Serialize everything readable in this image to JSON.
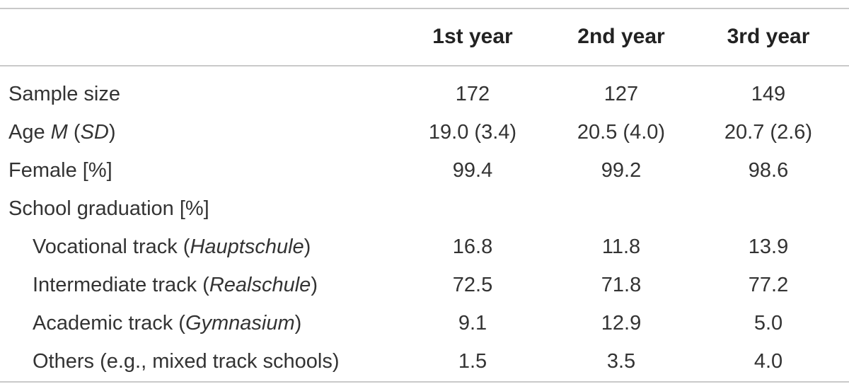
{
  "header": {
    "col1": "1st year",
    "col2": "2nd year",
    "col3": "3rd year"
  },
  "rows": [
    {
      "label": "Sample size",
      "values": [
        "172",
        "127",
        "149"
      ]
    },
    {
      "label_pre": "Age ",
      "label_it1": "M",
      "label_mid": " (",
      "label_it2": "SD",
      "label_post": ")",
      "values": [
        "19.0 (3.4)",
        "20.5 (4.0)",
        "20.7 (2.6)"
      ]
    },
    {
      "label": "Female [%]",
      "values": [
        "99.4",
        "99.2",
        "98.6"
      ]
    },
    {
      "label": "School graduation [%]"
    },
    {
      "label_pre": "Vocational track (",
      "label_it": "Hauptschule",
      "label_post": ")",
      "values": [
        "16.8",
        "11.8",
        "13.9"
      ]
    },
    {
      "label_pre": "Intermediate track (",
      "label_it": "Realschule",
      "label_post": ")",
      "values": [
        "72.5",
        "71.8",
        "77.2"
      ]
    },
    {
      "label_pre": "Academic track (",
      "label_it": "Gymnasium",
      "label_post": ")",
      "values": [
        "9.1",
        "12.9",
        "5.0"
      ]
    },
    {
      "label": "Others (e.g., mixed track schools)",
      "values": [
        "1.5",
        "3.5",
        "4.0"
      ]
    }
  ]
}
